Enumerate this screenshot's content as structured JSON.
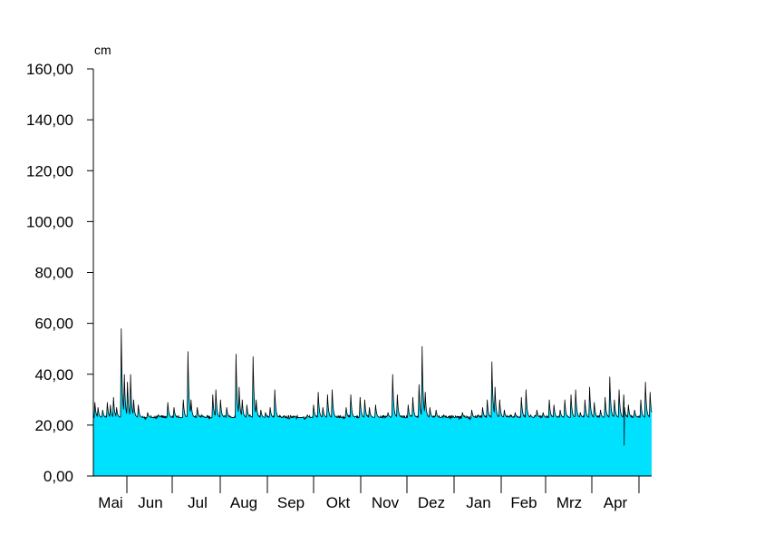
{
  "chart_data": {
    "type": "area",
    "unit": "cm",
    "ylim": [
      0,
      160
    ],
    "y_ticks": [
      "0,00",
      "20,00",
      "40,00",
      "60,00",
      "80,00",
      "100,00",
      "120,00",
      "140,00",
      "160,00"
    ],
    "y_tick_values": [
      0,
      20,
      40,
      60,
      80,
      100,
      120,
      140,
      160
    ],
    "months": [
      "Mai",
      "Jun",
      "Jul",
      "Aug",
      "Sep",
      "Okt",
      "Nov",
      "Dez",
      "Jan",
      "Feb",
      "Mrz",
      "Apr"
    ],
    "fill_color": "#00e0ff",
    "line_color": "#000000",
    "baseline": 23,
    "x_range_days": [
      0,
      360
    ],
    "peaks": [
      {
        "day": 1,
        "value": 29
      },
      {
        "day": 3,
        "value": 27
      },
      {
        "day": 6,
        "value": 26
      },
      {
        "day": 9,
        "value": 29
      },
      {
        "day": 11,
        "value": 28
      },
      {
        "day": 13,
        "value": 31
      },
      {
        "day": 15,
        "value": 27
      },
      {
        "day": 18,
        "value": 58
      },
      {
        "day": 20,
        "value": 40
      },
      {
        "day": 22,
        "value": 37
      },
      {
        "day": 24,
        "value": 40
      },
      {
        "day": 26,
        "value": 30
      },
      {
        "day": 29,
        "value": 28
      },
      {
        "day": 35,
        "value": 25
      },
      {
        "day": 42,
        "value": 24
      },
      {
        "day": 48,
        "value": 29
      },
      {
        "day": 52,
        "value": 27
      },
      {
        "day": 55,
        "value": 22
      },
      {
        "day": 58,
        "value": 30
      },
      {
        "day": 61,
        "value": 49
      },
      {
        "day": 63,
        "value": 30
      },
      {
        "day": 67,
        "value": 27
      },
      {
        "day": 70,
        "value": 24
      },
      {
        "day": 74,
        "value": 21
      },
      {
        "day": 77,
        "value": 32
      },
      {
        "day": 79,
        "value": 34
      },
      {
        "day": 82,
        "value": 30
      },
      {
        "day": 86,
        "value": 27
      },
      {
        "day": 89,
        "value": 23
      },
      {
        "day": 92,
        "value": 48
      },
      {
        "day": 94,
        "value": 35
      },
      {
        "day": 96,
        "value": 30
      },
      {
        "day": 99,
        "value": 28
      },
      {
        "day": 101,
        "value": 24
      },
      {
        "day": 103,
        "value": 47
      },
      {
        "day": 105,
        "value": 30
      },
      {
        "day": 108,
        "value": 26
      },
      {
        "day": 111,
        "value": 25
      },
      {
        "day": 114,
        "value": 27
      },
      {
        "day": 117,
        "value": 34
      },
      {
        "day": 121,
        "value": 23
      },
      {
        "day": 126,
        "value": 22
      },
      {
        "day": 132,
        "value": 23
      },
      {
        "day": 138,
        "value": 24
      },
      {
        "day": 142,
        "value": 28
      },
      {
        "day": 145,
        "value": 33
      },
      {
        "day": 148,
        "value": 27
      },
      {
        "day": 151,
        "value": 32
      },
      {
        "day": 154,
        "value": 34
      },
      {
        "day": 157,
        "value": 22
      },
      {
        "day": 160,
        "value": 18
      },
      {
        "day": 163,
        "value": 27
      },
      {
        "day": 166,
        "value": 32
      },
      {
        "day": 169,
        "value": 22
      },
      {
        "day": 172,
        "value": 31
      },
      {
        "day": 175,
        "value": 30
      },
      {
        "day": 178,
        "value": 27
      },
      {
        "day": 182,
        "value": 28
      },
      {
        "day": 186,
        "value": 23
      },
      {
        "day": 190,
        "value": 25
      },
      {
        "day": 193,
        "value": 40
      },
      {
        "day": 196,
        "value": 32
      },
      {
        "day": 200,
        "value": 22
      },
      {
        "day": 203,
        "value": 28
      },
      {
        "day": 206,
        "value": 31
      },
      {
        "day": 210,
        "value": 36
      },
      {
        "day": 212,
        "value": 51
      },
      {
        "day": 214,
        "value": 33
      },
      {
        "day": 217,
        "value": 27
      },
      {
        "day": 221,
        "value": 26
      },
      {
        "day": 226,
        "value": 24
      },
      {
        "day": 232,
        "value": 23
      },
      {
        "day": 238,
        "value": 25
      },
      {
        "day": 244,
        "value": 26
      },
      {
        "day": 248,
        "value": 24
      },
      {
        "day": 251,
        "value": 27
      },
      {
        "day": 254,
        "value": 30
      },
      {
        "day": 257,
        "value": 45
      },
      {
        "day": 259,
        "value": 35
      },
      {
        "day": 262,
        "value": 30
      },
      {
        "day": 265,
        "value": 26
      },
      {
        "day": 269,
        "value": 24
      },
      {
        "day": 272,
        "value": 25
      },
      {
        "day": 276,
        "value": 31
      },
      {
        "day": 279,
        "value": 34
      },
      {
        "day": 282,
        "value": 24
      },
      {
        "day": 286,
        "value": 26
      },
      {
        "day": 290,
        "value": 25
      },
      {
        "day": 294,
        "value": 30
      },
      {
        "day": 297,
        "value": 28
      },
      {
        "day": 301,
        "value": 26
      },
      {
        "day": 304,
        "value": 30
      },
      {
        "day": 308,
        "value": 32
      },
      {
        "day": 311,
        "value": 34
      },
      {
        "day": 314,
        "value": 25
      },
      {
        "day": 317,
        "value": 30
      },
      {
        "day": 320,
        "value": 35
      },
      {
        "day": 323,
        "value": 29
      },
      {
        "day": 327,
        "value": 26
      },
      {
        "day": 330,
        "value": 31
      },
      {
        "day": 333,
        "value": 39
      },
      {
        "day": 336,
        "value": 30
      },
      {
        "day": 339,
        "value": 34
      },
      {
        "day": 342,
        "value": 32
      },
      {
        "day": 345,
        "value": 28
      },
      {
        "day": 349,
        "value": 26
      },
      {
        "day": 353,
        "value": 30
      },
      {
        "day": 356,
        "value": 37
      },
      {
        "day": 359,
        "value": 33
      }
    ]
  }
}
